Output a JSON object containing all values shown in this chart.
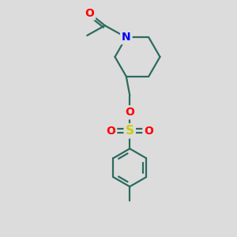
{
  "bg_color": "#dcdcdc",
  "bond_color": "#2d6b5e",
  "N_color": "#0000ff",
  "O_color": "#ff0000",
  "S_color": "#cccc00",
  "bond_width": 1.6,
  "figsize": [
    3.0,
    3.0
  ],
  "dpi": 100,
  "xlim": [
    0,
    10
  ],
  "ylim": [
    0,
    10
  ]
}
